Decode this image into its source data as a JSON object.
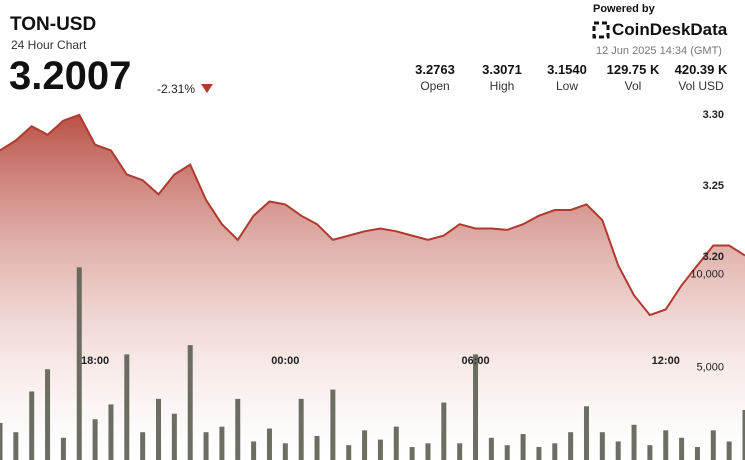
{
  "header": {
    "symbol": "TON-USD",
    "subtitle": "24 Hour Chart",
    "price": "3.2007",
    "change": "-2.31%",
    "powered_by": "Powered by",
    "brand": "CoinDeskData",
    "timestamp": "12 Jun 2025 14:34 (GMT)"
  },
  "stats": [
    {
      "value": "3.2763",
      "label": "Open"
    },
    {
      "value": "3.3071",
      "label": "High"
    },
    {
      "value": "3.1540",
      "label": "Low"
    },
    {
      "value": "129.75 K",
      "label": "Vol"
    },
    {
      "value": "420.39 K",
      "label": "Vol USD"
    }
  ],
  "chart_data": {
    "type": "area",
    "color": "#b03a2e",
    "x": [
      15,
      15.5,
      16,
      16.5,
      17,
      17.5,
      18,
      18.5,
      19,
      19.5,
      20,
      20.5,
      21,
      21.5,
      22,
      22.5,
      23,
      23.5,
      24,
      24.5,
      25,
      25.5,
      26,
      26.5,
      27,
      27.5,
      28,
      28.5,
      29,
      29.5,
      30,
      30.5,
      31,
      31.5,
      32,
      32.5,
      33,
      33.5,
      34,
      34.5,
      35,
      35.5,
      36,
      36.5,
      37,
      37.5,
      38,
      38.5
    ],
    "values": [
      3.275,
      3.282,
      3.292,
      3.286,
      3.296,
      3.3,
      3.279,
      3.275,
      3.258,
      3.254,
      3.244,
      3.258,
      3.265,
      3.24,
      3.223,
      3.212,
      3.229,
      3.239,
      3.237,
      3.229,
      3.223,
      3.212,
      3.215,
      3.218,
      3.22,
      3.218,
      3.215,
      3.212,
      3.215,
      3.223,
      3.22,
      3.22,
      3.219,
      3.223,
      3.229,
      3.233,
      3.233,
      3.237,
      3.226,
      3.194,
      3.173,
      3.159,
      3.163,
      3.18,
      3.194,
      3.208,
      3.208,
      3.201
    ],
    "xlim": [
      15,
      38.5
    ],
    "xticks": [
      {
        "value": 18,
        "label": "18:00"
      },
      {
        "value": 24,
        "label": "00:00"
      },
      {
        "value": 30,
        "label": "06:00"
      },
      {
        "value": 36,
        "label": "12:00"
      }
    ],
    "ylim": [
      3.057,
      3.314
    ],
    "yticks": [
      {
        "value": 3.2,
        "label": "3.20"
      },
      3.25,
      {
        "value": 3.3,
        "label": "3.30"
      }
    ],
    "volume": {
      "type": "bar",
      "color": "#5c5e52",
      "values": [
        2000,
        1500,
        3700,
        4900,
        1200,
        10400,
        2200,
        3000,
        5700,
        1500,
        3300,
        2500,
        6200,
        1500,
        1800,
        3300,
        1000,
        1700,
        900,
        3300,
        1300,
        3800,
        800,
        1600,
        1100,
        1800,
        700,
        900,
        3100,
        900,
        5700,
        1200,
        800,
        1400,
        700,
        900,
        1500,
        2900,
        1500,
        1000,
        1900,
        800,
        1600,
        1200,
        700,
        1600,
        1000,
        2700
      ],
      "y2lim": [
        0,
        19700
      ],
      "y2ticks": [
        {
          "value": 5000,
          "label": "5,000"
        },
        {
          "value": 10000,
          "label": "10,000"
        }
      ]
    }
  }
}
